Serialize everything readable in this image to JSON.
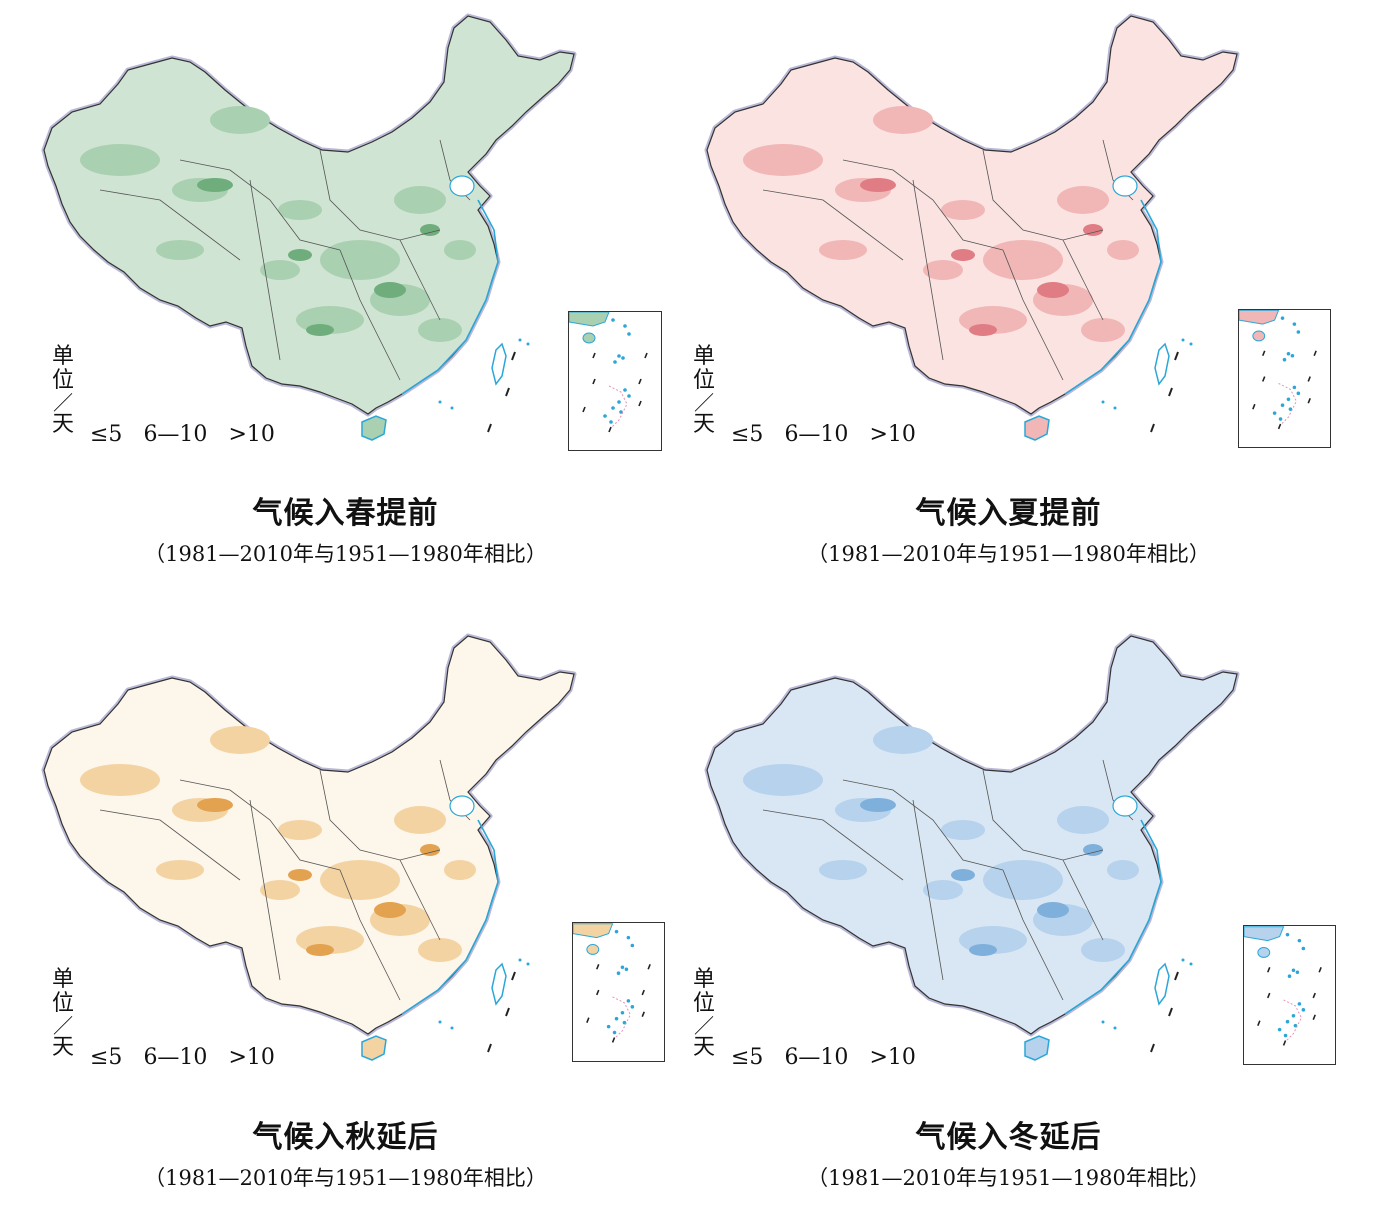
{
  "maps": [
    {
      "title": "气候入春提前",
      "subtitle": "（1981—2010年与1951—1980年相比）",
      "colors": {
        "light": "#cfe4d2",
        "mid": "#a9d0b0",
        "dark": "#6fae7c"
      }
    },
    {
      "title": "气候入夏提前",
      "subtitle": "（1981—2010年与1951—1980年相比）",
      "colors": {
        "light": "#fbe3e1",
        "mid": "#f1b6b6",
        "dark": "#e07d84"
      }
    },
    {
      "title": "气候入秋延后",
      "subtitle": "（1981—2010年与1951—1980年相比）",
      "colors": {
        "light": "#fdf6ea",
        "mid": "#f4d3a3",
        "dark": "#e3a24f"
      }
    },
    {
      "title": "气候入冬延后",
      "subtitle": "（1981—2010年与1951—1980年相比）",
      "colors": {
        "light": "#d8e7f3",
        "mid": "#b6d2ec",
        "dark": "#7fb0dc"
      }
    }
  ],
  "legend": {
    "unit_chars": [
      "单",
      "位",
      "天"
    ],
    "unit_slash": "／",
    "items": [
      "≤5",
      "6—10",
      ">10"
    ]
  }
}
